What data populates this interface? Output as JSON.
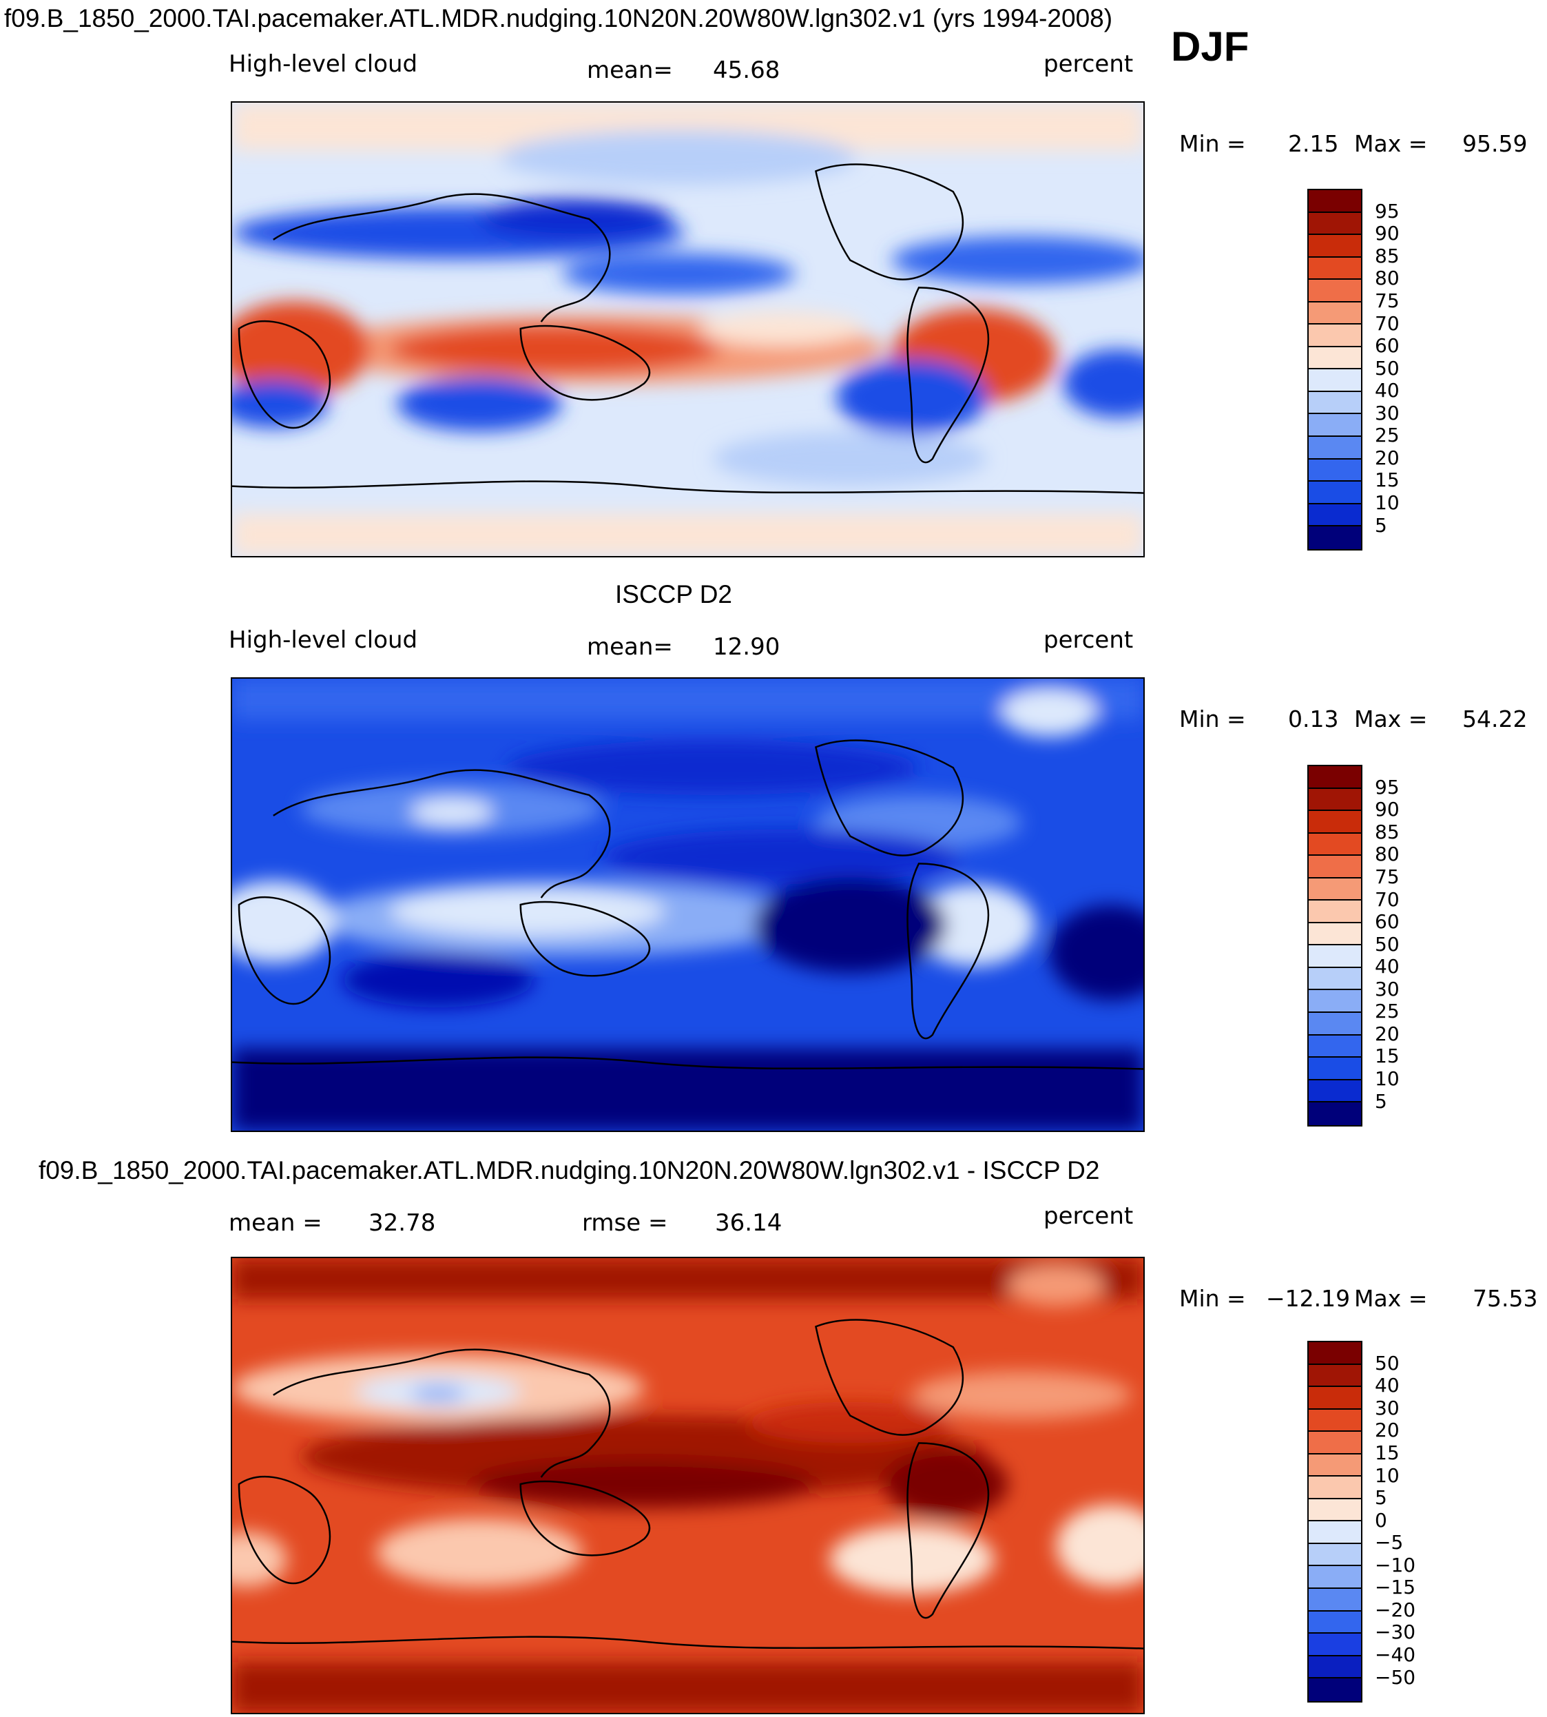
{
  "figure": {
    "title": "f09.B_1850_2000.TAI.pacemaker.ATL.MDR.nudging.10N20N.20W80W.lgn302.v1 (yrs 1994-2008)",
    "season": "DJF",
    "obs_title": "ISCCP D2",
    "diff_title": "f09.B_1850_2000.TAI.pacemaker.ATL.MDR.nudging.10N20N.20W80W.lgn302.v1 - ISCCP D2"
  },
  "colors": {
    "cloud_levels": [
      "#00007a",
      "#0008b0",
      "#0a2bd0",
      "#1a4de6",
      "#3366ee",
      "#5a88f2",
      "#8aadf6",
      "#b7cff9",
      "#dde9fc",
      "#fce5d6",
      "#fbc8ae",
      "#f59a76",
      "#ef6e48",
      "#e34a22",
      "#c92c0a",
      "#a01505",
      "#7a0000"
    ],
    "diff_levels": [
      "#00007a",
      "#0a1fc0",
      "#1a3fe2",
      "#3366ee",
      "#5a88f2",
      "#8aadf6",
      "#b7cff9",
      "#dde9fc",
      "#fce5d6",
      "#fbc8ae",
      "#f59a76",
      "#ef6e48",
      "#e34a22",
      "#c92c0a",
      "#a01505",
      "#7a0000"
    ]
  },
  "chart_data": [
    {
      "type": "heatmap",
      "panel": "model",
      "variable": "High-level cloud",
      "units": "percent",
      "mean_label": "mean=",
      "mean": "45.68",
      "min_label": "Min =",
      "min": "2.15",
      "max_label": "Max =",
      "max": "95.59",
      "levels": [
        "95",
        "90",
        "85",
        "80",
        "75",
        "70",
        "60",
        "50",
        "40",
        "30",
        "25",
        "20",
        "15",
        "10",
        "5"
      ]
    },
    {
      "type": "heatmap",
      "panel": "observations",
      "variable": "High-level cloud",
      "units": "percent",
      "mean_label": "mean=",
      "mean": "12.90",
      "min_label": "Min =",
      "min": "0.13",
      "max_label": "Max =",
      "max": "54.22",
      "levels": [
        "95",
        "90",
        "85",
        "80",
        "75",
        "70",
        "60",
        "50",
        "40",
        "30",
        "25",
        "20",
        "15",
        "10",
        "5"
      ]
    },
    {
      "type": "heatmap",
      "panel": "difference",
      "units": "percent",
      "mean_label": "mean =",
      "mean": "32.78",
      "rmse_label": "rmse =",
      "rmse": "36.14",
      "min_label": "Min =",
      "min": "−12.19",
      "max_label": "Max =",
      "max": "75.53",
      "levels": [
        "50",
        "40",
        "30",
        "20",
        "15",
        "10",
        "5",
        "0",
        "−5",
        "−10",
        "−15",
        "−20",
        "−30",
        "−40",
        "−50"
      ]
    }
  ]
}
